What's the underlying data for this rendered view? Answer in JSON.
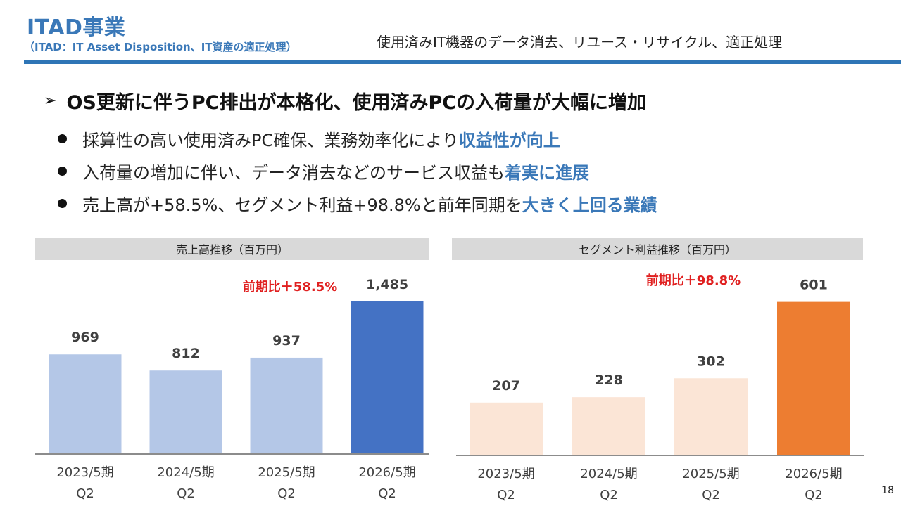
{
  "header": {
    "title": "ITAD事業",
    "subtitle": "（ITAD：IT Asset Disposition、IT資産の適正処理）",
    "tagline": "使用済みIT機器のデータ消去、リユース・リサイクル、適正処理"
  },
  "headline": {
    "marker": "➢",
    "text": "OS更新に伴うPC排出が本格化、使用済みPCの入荷量が大幅に増加"
  },
  "bullets": [
    {
      "text": "採算性の高い使用済みPC確保、業務効率化により",
      "highlight": "収益性が向上"
    },
    {
      "text": "入荷量の増加に伴い、データ消去などのサービス収益も",
      "highlight": "着実に進展"
    },
    {
      "text": "売上高が+58.5%、セグメント利益+98.8%と前年同期を",
      "highlight": "大きく上回る業績"
    }
  ],
  "colors": {
    "brand": "#3a78b8",
    "header_rule": "#2e75b6",
    "sales_light": "#b4c7e7",
    "sales_dark": "#4472c4",
    "profit_light": "#fbe5d6",
    "profit_dark": "#ed7d31",
    "change_red": "#e02020"
  },
  "chart_data": [
    {
      "type": "bar",
      "title": "売上高推移（百万円）",
      "categories": [
        "2023/5期\nQ2",
        "2024/5期\nQ2",
        "2025/5期\nQ2",
        "2026/5期\nQ2"
      ],
      "values": [
        969,
        812,
        937,
        1485
      ],
      "value_labels": [
        "969",
        "812",
        "937",
        "1,485"
      ],
      "annotation": "前期比＋58.5%",
      "ylim": [
        0,
        1750
      ],
      "xlabel": "",
      "ylabel": ""
    },
    {
      "type": "bar",
      "title": "セグメント利益推移（百万円）",
      "categories": [
        "2023/5期\nQ2",
        "2024/5期\nQ2",
        "2025/5期\nQ2",
        "2026/5期\nQ2"
      ],
      "values": [
        207,
        228,
        302,
        601
      ],
      "value_labels": [
        "207",
        "228",
        "302",
        "601"
      ],
      "annotation": "前期比＋98.8%",
      "ylim": [
        0,
        710
      ],
      "xlabel": "",
      "ylabel": ""
    }
  ],
  "page_number": "18"
}
